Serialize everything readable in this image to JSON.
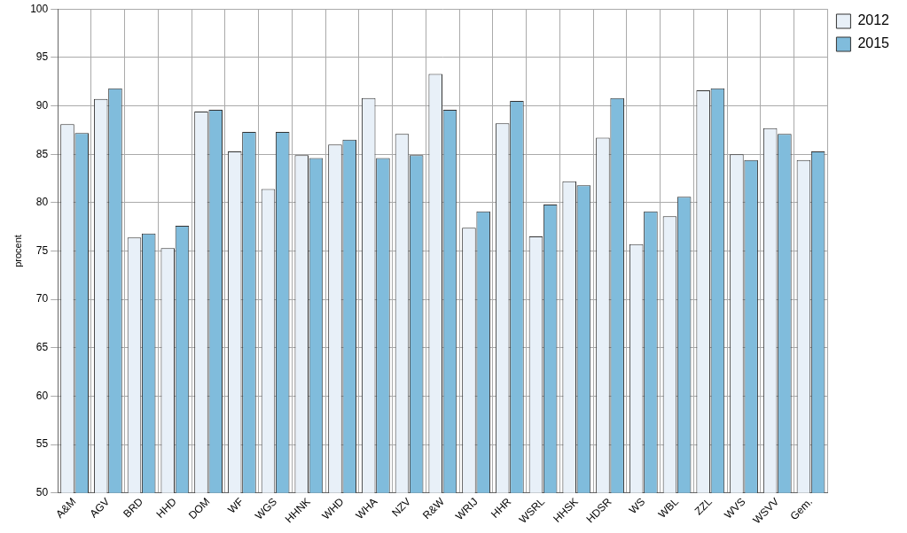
{
  "chart_data": {
    "type": "bar",
    "y_label": "procent",
    "categories": [
      "A&M",
      "AGV",
      "BRD",
      "HHD",
      "DOM",
      "WF",
      "WGS",
      "HHNK",
      "WHD",
      "WHA",
      "NZV",
      "R&W",
      "WRIJ",
      "HHR",
      "WSRL",
      "HHSK",
      "HDSR",
      "WS",
      "WBL",
      "ZZL",
      "WVS",
      "WSVV",
      "Gem."
    ],
    "series": [
      {
        "name": "2012",
        "color": "#e8f0f8",
        "values": [
          88.1,
          90.7,
          76.4,
          75.3,
          89.4,
          85.3,
          81.4,
          84.9,
          86.0,
          90.8,
          87.1,
          93.3,
          77.4,
          88.2,
          76.5,
          82.2,
          86.7,
          75.7,
          78.6,
          91.6,
          85.0,
          87.7,
          84.4
        ]
      },
      {
        "name": "2015",
        "color": "#80bcdc",
        "values": [
          87.2,
          91.8,
          76.8,
          77.6,
          89.6,
          87.3,
          87.3,
          84.6,
          86.5,
          84.6,
          84.9,
          89.6,
          79.1,
          90.5,
          79.8,
          81.8,
          90.8,
          79.1,
          80.6,
          91.8,
          84.4,
          87.1,
          85.3
        ]
      }
    ],
    "ylim": [
      50,
      100
    ],
    "yticks": [
      50,
      55,
      60,
      65,
      70,
      75,
      80,
      85,
      90,
      95,
      100
    ],
    "grid": true,
    "legend": "right"
  }
}
